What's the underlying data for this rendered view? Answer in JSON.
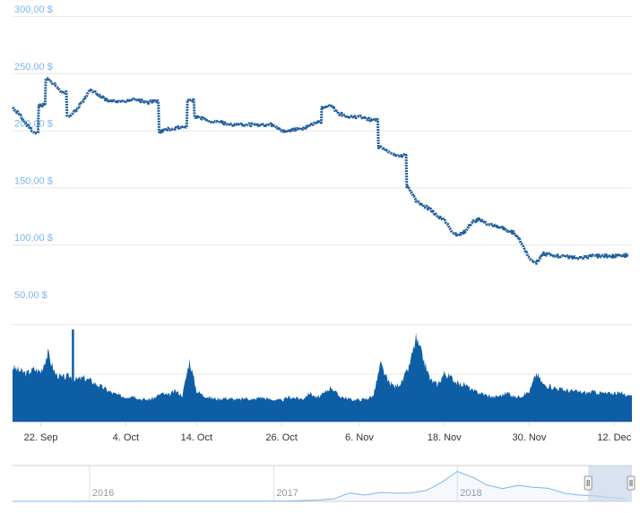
{
  "colors": {
    "price_line": "#1f5f9e",
    "volume_fill": "#0e5ea6",
    "grid": "#e6e6e6",
    "y_label": "#7cb5ec",
    "x_label": "#333333",
    "navigator_line": "#7cb5ec",
    "navigator_mask": "#c9d6ea",
    "navigator_handle": "#f2f2f2"
  },
  "chart_data": [
    {
      "type": "line",
      "title": "",
      "ylabel": "",
      "xlabel": "",
      "ylim": [
        50,
        300
      ],
      "y_ticks": [
        "50,00 $",
        "100,00 $",
        "150,00 $",
        "200,00 $",
        "250,00 $",
        "300,00 $"
      ],
      "x_ticks": [
        "22. Sep",
        "4. Oct",
        "14. Oct",
        "26. Oct",
        "6. Nov",
        "18. Nov",
        "30. Nov",
        "12. Dec"
      ],
      "grid": true,
      "series": [
        {
          "x": [
            "2018-09-18",
            "2018-09-19",
            "2018-09-20",
            "2018-09-21",
            "2018-09-22",
            "2018-09-23",
            "2018-09-24",
            "2018-09-25",
            "2018-09-26",
            "2018-09-27",
            "2018-09-28",
            "2018-09-29",
            "2018-09-30",
            "2018-10-01",
            "2018-10-02",
            "2018-10-03",
            "2018-10-04",
            "2018-10-05",
            "2018-10-06",
            "2018-10-07",
            "2018-10-08",
            "2018-10-09",
            "2018-10-10",
            "2018-10-11",
            "2018-10-12",
            "2018-10-13",
            "2018-10-14",
            "2018-10-15",
            "2018-10-16",
            "2018-10-17",
            "2018-10-18",
            "2018-10-19",
            "2018-10-20",
            "2018-10-21",
            "2018-10-22",
            "2018-10-23",
            "2018-10-24",
            "2018-10-25",
            "2018-10-26",
            "2018-10-27",
            "2018-10-28",
            "2018-10-29",
            "2018-10-30",
            "2018-10-31",
            "2018-11-01",
            "2018-11-02",
            "2018-11-03",
            "2018-11-04",
            "2018-11-05",
            "2018-11-06",
            "2018-11-07",
            "2018-11-08",
            "2018-11-09",
            "2018-11-10",
            "2018-11-11",
            "2018-11-12",
            "2018-11-13",
            "2018-11-14",
            "2018-11-15",
            "2018-11-16",
            "2018-11-17",
            "2018-11-18",
            "2018-11-19",
            "2018-11-20",
            "2018-11-21",
            "2018-11-22",
            "2018-11-23",
            "2018-11-24",
            "2018-11-25",
            "2018-11-26",
            "2018-11-27",
            "2018-11-28",
            "2018-11-29",
            "2018-11-30",
            "2018-12-01",
            "2018-12-02",
            "2018-12-03",
            "2018-12-04",
            "2018-12-05",
            "2018-12-06",
            "2018-12-07",
            "2018-12-08",
            "2018-12-09",
            "2018-12-10",
            "2018-12-11",
            "2018-12-12",
            "2018-12-13",
            "2018-12-14"
          ],
          "values": [
            220,
            214,
            205,
            198,
            222,
            245,
            240,
            233,
            212,
            218,
            226,
            236,
            232,
            228,
            225,
            226,
            225,
            227,
            226,
            224,
            226,
            199,
            201,
            202,
            203,
            226,
            212,
            210,
            207,
            208,
            206,
            205,
            206,
            205,
            205,
            205,
            205,
            205,
            199,
            200,
            201,
            202,
            204,
            207,
            220,
            222,
            215,
            213,
            212,
            212,
            210,
            209,
            185,
            182,
            179,
            178,
            150,
            138,
            134,
            131,
            125,
            122,
            112,
            108,
            112,
            120,
            122,
            118,
            117,
            115,
            112,
            110,
            100,
            88,
            84,
            92,
            91,
            90,
            90,
            89,
            88,
            89,
            90,
            90,
            90,
            90,
            90,
            91
          ]
        }
      ]
    },
    {
      "type": "area",
      "title": "",
      "ylabel": "",
      "xlabel": "",
      "grid": true,
      "series": [
        {
          "x": [
            "2018-09-18",
            "2018-09-19",
            "2018-09-20",
            "2018-09-21",
            "2018-09-22",
            "2018-09-23",
            "2018-09-24",
            "2018-09-25",
            "2018-09-26",
            "2018-09-27",
            "2018-09-28",
            "2018-09-29",
            "2018-09-30",
            "2018-10-01",
            "2018-10-02",
            "2018-10-03",
            "2018-10-04",
            "2018-10-05",
            "2018-10-06",
            "2018-10-07",
            "2018-10-08",
            "2018-10-09",
            "2018-10-10",
            "2018-10-11",
            "2018-10-12",
            "2018-10-13",
            "2018-10-14",
            "2018-10-15",
            "2018-10-16",
            "2018-10-17",
            "2018-10-18",
            "2018-10-19",
            "2018-10-20",
            "2018-10-21",
            "2018-10-22",
            "2018-10-23",
            "2018-10-24",
            "2018-10-25",
            "2018-10-26",
            "2018-10-27",
            "2018-10-28",
            "2018-10-29",
            "2018-10-30",
            "2018-10-31",
            "2018-11-01",
            "2018-11-02",
            "2018-11-03",
            "2018-11-04",
            "2018-11-05",
            "2018-11-06",
            "2018-11-07",
            "2018-11-08",
            "2018-11-09",
            "2018-11-10",
            "2018-11-11",
            "2018-11-12",
            "2018-11-13",
            "2018-11-14",
            "2018-11-15",
            "2018-11-16",
            "2018-11-17",
            "2018-11-18",
            "2018-11-19",
            "2018-11-20",
            "2018-11-21",
            "2018-11-22",
            "2018-11-23",
            "2018-11-24",
            "2018-11-25",
            "2018-11-26",
            "2018-11-27",
            "2018-11-28",
            "2018-11-29",
            "2018-11-30",
            "2018-12-01",
            "2018-12-02",
            "2018-12-03",
            "2018-12-04",
            "2018-12-05",
            "2018-12-06",
            "2018-12-07",
            "2018-12-08",
            "2018-12-09",
            "2018-12-10",
            "2018-12-11",
            "2018-12-12",
            "2018-12-13",
            "2018-12-14"
          ],
          "values": [
            0.62,
            0.58,
            0.55,
            0.6,
            0.57,
            0.78,
            0.55,
            0.5,
            0.52,
            0.48,
            0.5,
            0.47,
            0.42,
            0.38,
            0.33,
            0.3,
            0.28,
            0.3,
            0.26,
            0.25,
            0.27,
            0.32,
            0.3,
            0.35,
            0.3,
            0.7,
            0.35,
            0.3,
            0.27,
            0.26,
            0.27,
            0.26,
            0.25,
            0.27,
            0.25,
            0.28,
            0.26,
            0.25,
            0.24,
            0.28,
            0.27,
            0.26,
            0.33,
            0.27,
            0.32,
            0.4,
            0.3,
            0.27,
            0.25,
            0.25,
            0.26,
            0.3,
            0.66,
            0.46,
            0.4,
            0.45,
            0.62,
            0.95,
            0.72,
            0.48,
            0.42,
            0.55,
            0.5,
            0.43,
            0.42,
            0.35,
            0.33,
            0.3,
            0.28,
            0.3,
            0.33,
            0.28,
            0.3,
            0.34,
            0.55,
            0.42,
            0.4,
            0.38,
            0.36,
            0.35,
            0.34,
            0.33,
            0.34,
            0.33,
            0.32,
            0.33,
            0.32,
            0.3
          ]
        }
      ]
    },
    {
      "type": "area",
      "title": "",
      "x_ticks": [
        "2016",
        "2017",
        "2018"
      ],
      "range_selected": true,
      "series": [
        {
          "x": [
            "2015-08",
            "2015-11",
            "2016-02",
            "2016-05",
            "2016-08",
            "2016-11",
            "2017-02",
            "2017-04",
            "2017-05",
            "2017-06",
            "2017-07",
            "2017-08",
            "2017-09",
            "2017-10",
            "2017-11",
            "2017-12",
            "2018-01",
            "2018-02",
            "2018-03",
            "2018-04",
            "2018-05",
            "2018-06",
            "2018-07",
            "2018-08",
            "2018-09",
            "2018-10",
            "2018-11",
            "2018-12"
          ],
          "values": [
            1,
            1,
            4,
            11,
            11,
            9,
            12,
            50,
            95,
            310,
            230,
            330,
            300,
            310,
            400,
            700,
            1100,
            880,
            600,
            470,
            590,
            520,
            480,
            300,
            230,
            210,
            140,
            90
          ]
        }
      ]
    }
  ]
}
